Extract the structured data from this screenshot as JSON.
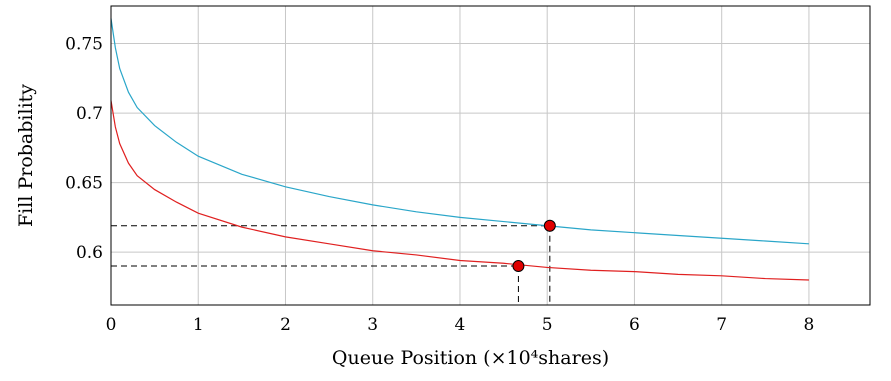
{
  "chart_data": {
    "type": "line",
    "title": "",
    "xlabel": "Queue Position (×10⁴shares)",
    "ylabel": "Fill Probability",
    "xlim": [
      0,
      8.7
    ],
    "ylim": [
      0.562,
      0.777
    ],
    "xticks": [
      0,
      1,
      2,
      3,
      4,
      5,
      6,
      7,
      8
    ],
    "yticks": [
      0.6,
      0.65,
      0.7,
      0.75
    ],
    "xtick_labels": [
      "0",
      "1",
      "2",
      "3",
      "4",
      "5",
      "6",
      "7",
      "8"
    ],
    "ytick_labels": [
      "0.6",
      "0.65",
      "0.7",
      "0.75"
    ],
    "grid": true,
    "series": [
      {
        "color": "#2aa6c9",
        "x": [
          0,
          0.05,
          0.1,
          0.2,
          0.3,
          0.5,
          0.75,
          1,
          1.5,
          2,
          2.5,
          3,
          3.5,
          4,
          4.5,
          5,
          5.5,
          6,
          6.5,
          7,
          7.5,
          8
        ],
        "y": [
          0.768,
          0.747,
          0.732,
          0.715,
          0.704,
          0.691,
          0.679,
          0.669,
          0.656,
          0.647,
          0.64,
          0.634,
          0.629,
          0.625,
          0.622,
          0.619,
          0.616,
          0.614,
          0.612,
          0.61,
          0.608,
          0.606
        ]
      },
      {
        "color": "#e02020",
        "x": [
          0,
          0.05,
          0.1,
          0.2,
          0.3,
          0.5,
          0.75,
          1,
          1.5,
          2,
          2.5,
          3,
          3.5,
          4,
          4.5,
          5,
          5.5,
          6,
          6.5,
          7,
          7.5,
          8
        ],
        "y": [
          0.709,
          0.69,
          0.678,
          0.664,
          0.655,
          0.645,
          0.636,
          0.628,
          0.618,
          0.611,
          0.606,
          0.601,
          0.598,
          0.594,
          0.592,
          0.589,
          0.587,
          0.586,
          0.584,
          0.583,
          0.581,
          0.58
        ]
      }
    ],
    "points": [
      {
        "x": 5.03,
        "y": 0.619,
        "color": "#e00000"
      },
      {
        "x": 4.67,
        "y": 0.59,
        "color": "#e00000"
      }
    ]
  }
}
